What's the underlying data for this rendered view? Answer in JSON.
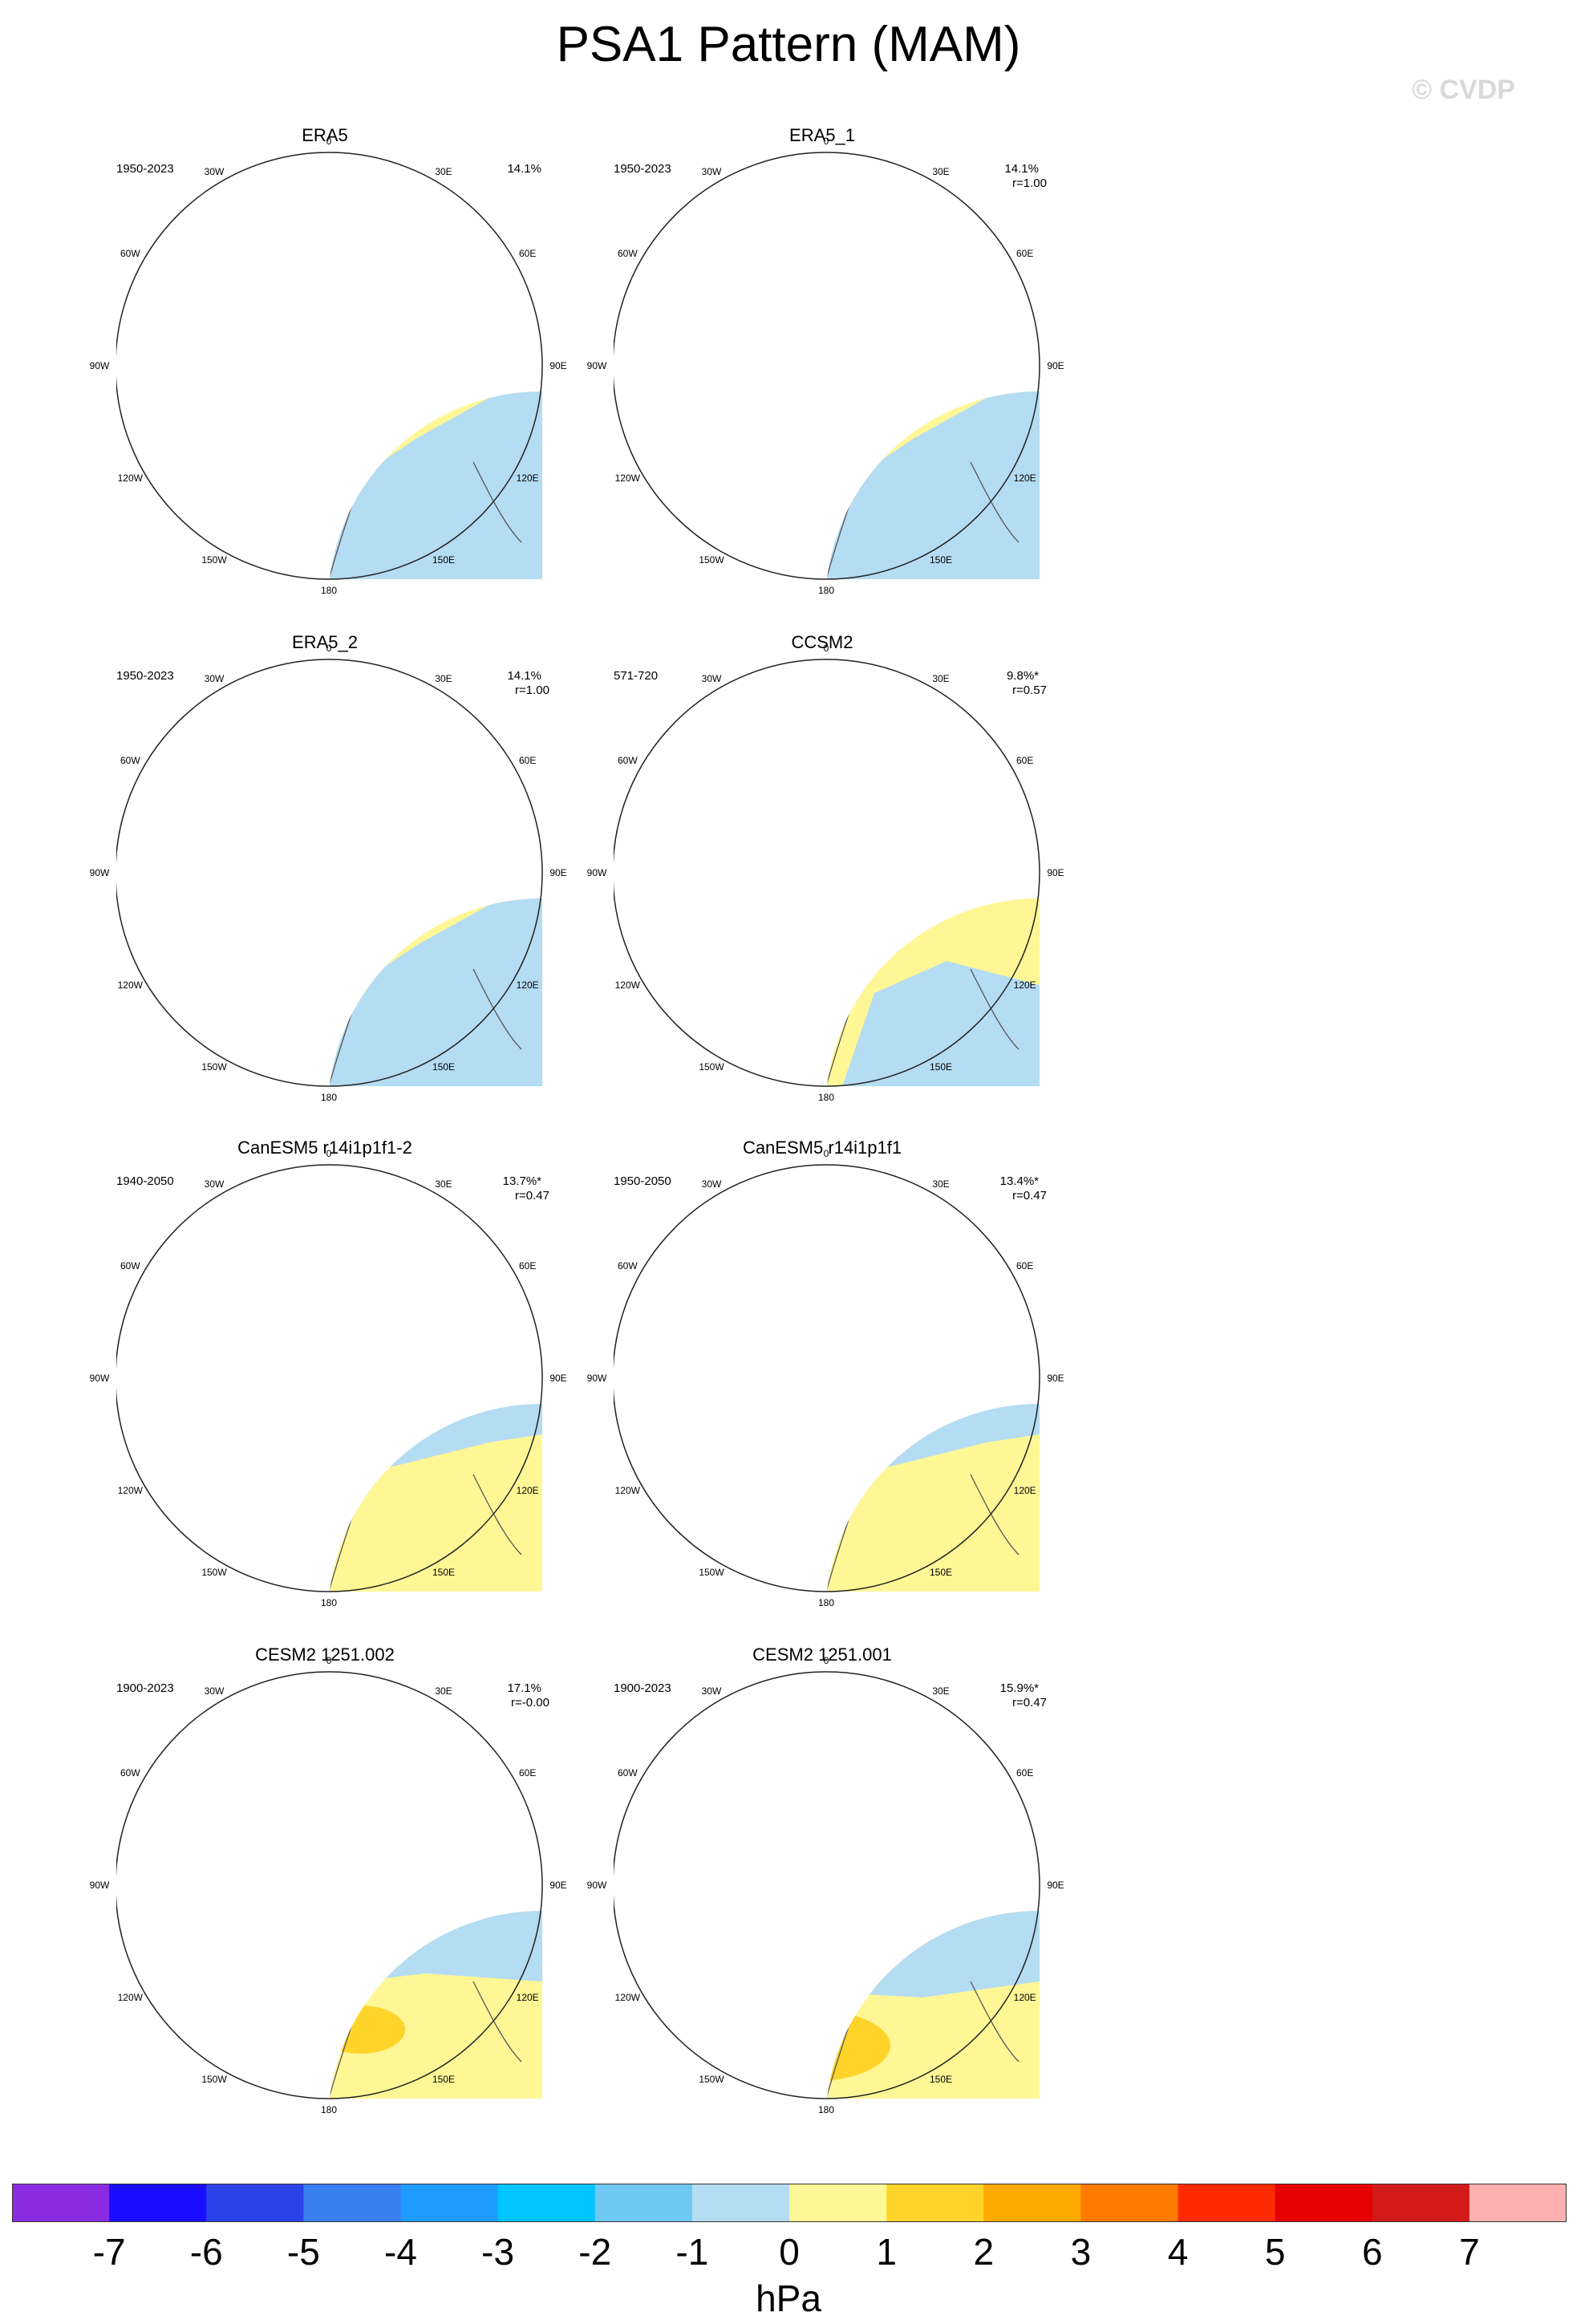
{
  "title": "PSA1 Pattern (MAM)",
  "watermark": "© CVDP",
  "units": "hPa",
  "lon_labels": {
    "deg0": "0",
    "deg30e": "30E",
    "deg60e": "60E",
    "deg90e": "90E",
    "deg120e": "120E",
    "deg150e": "150E",
    "deg180": "180",
    "deg150w": "150W",
    "deg120w": "120W",
    "deg90w": "90W",
    "deg60w": "60W",
    "deg30w": "30W"
  },
  "colorbar": {
    "ticks": [
      "-7",
      "-6",
      "-5",
      "-4",
      "-3",
      "-2",
      "-1",
      "0",
      "1",
      "2",
      "3",
      "4",
      "5",
      "6",
      "7"
    ],
    "colors": [
      "#8a2be2",
      "#1a0dff",
      "#2a43e8",
      "#3a7ff0",
      "#1e9bff",
      "#00c4ff",
      "#6ec8f2",
      "#b4dcf2",
      "#fff796",
      "#ffd42a",
      "#ffaa00",
      "#ff7a00",
      "#ff2a00",
      "#e60000",
      "#d21a1a",
      "#ffb0b0"
    ]
  },
  "panels": [
    {
      "title": "ERA5",
      "period": "1950-2023",
      "pct": "14.1%",
      "r": "",
      "pattern": "era"
    },
    {
      "title": "ERA5_1",
      "period": "1950-2023",
      "pct": "14.1%",
      "r": "r=1.00",
      "pattern": "era"
    },
    {
      "title": "ERA5_2",
      "period": "1950-2023",
      "pct": "14.1%",
      "r": "r=1.00",
      "pattern": "era"
    },
    {
      "title": "CCSM2",
      "period": "571-720",
      "pct": "9.8%*",
      "r": "r=0.57",
      "pattern": "ccsm"
    },
    {
      "title": "CanESM5 r14i1p1f1-2",
      "period": "1940-2050",
      "pct": "13.7%*",
      "r": "r=0.47",
      "pattern": "can"
    },
    {
      "title": "CanESM5 r14i1p1f1",
      "period": "1950-2050",
      "pct": "13.4%*",
      "r": "r=0.47",
      "pattern": "can"
    },
    {
      "title": "CESM2 1251.002",
      "period": "1900-2023",
      "pct": "17.1%",
      "r": "r=-0.00",
      "pattern": "cesm2"
    },
    {
      "title": "CESM2 1251.001",
      "period": "1900-2023",
      "pct": "15.9%*",
      "r": "r=0.47",
      "pattern": "cesm1"
    }
  ]
}
